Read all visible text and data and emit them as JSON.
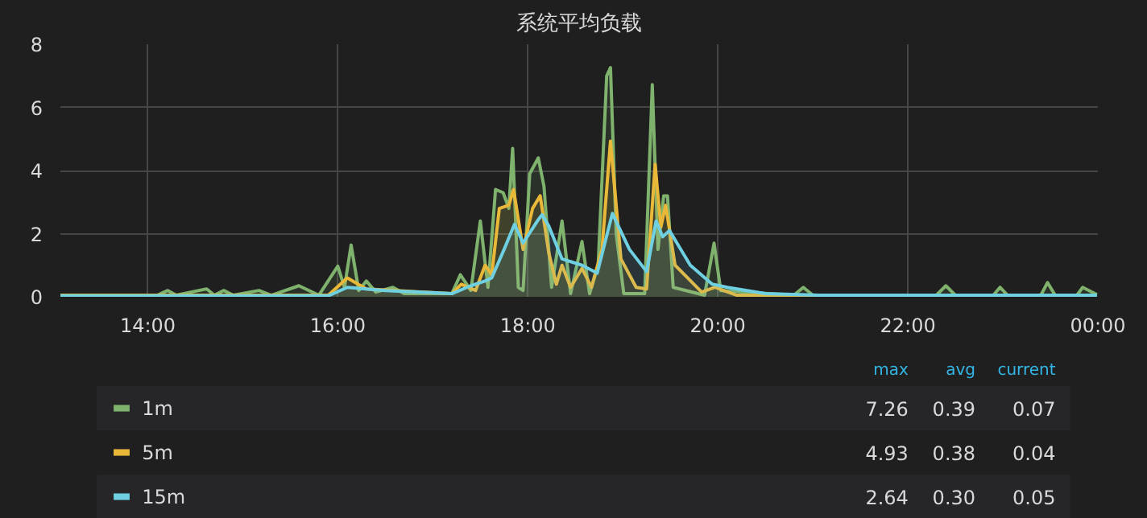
{
  "chart_data": {
    "type": "area",
    "title": "系统平均负载",
    "xlim": [
      13.08,
      24
    ],
    "ylim": [
      0,
      8
    ],
    "xticks": [
      {
        "value": 14,
        "label": "14:00"
      },
      {
        "value": 16,
        "label": "16:00"
      },
      {
        "value": 18,
        "label": "18:00"
      },
      {
        "value": 20,
        "label": "20:00"
      },
      {
        "value": 22,
        "label": "22:00"
      },
      {
        "value": 24,
        "label": "00:00"
      }
    ],
    "yticks": [
      0,
      2,
      4,
      6,
      8
    ],
    "grid": true,
    "legend": "bottom",
    "annotations": [
      "max",
      "avg",
      "current",
      "7.26",
      "0.39",
      "0.07",
      "4.93",
      "0.38",
      "0.04",
      "2.64",
      "0.30",
      "0.05"
    ],
    "series": [
      {
        "name": "1m",
        "color": "#7eb26d",
        "x": [
          13.08,
          14.1,
          14.21,
          14.3,
          14.62,
          14.7,
          14.8,
          14.9,
          15.17,
          15.3,
          15.59,
          15.8,
          16.0,
          16.07,
          16.14,
          16.22,
          16.3,
          16.4,
          16.58,
          16.7,
          17.2,
          17.29,
          17.4,
          17.5,
          17.58,
          17.66,
          17.74,
          17.8,
          17.84,
          17.9,
          17.95,
          18.02,
          18.11,
          18.17,
          18.25,
          18.36,
          18.45,
          18.57,
          18.65,
          18.74,
          18.83,
          18.87,
          18.93,
          19.01,
          19.23,
          19.31,
          19.37,
          19.43,
          19.47,
          19.53,
          19.86,
          19.96,
          20.03,
          20.8,
          20.9,
          21.0,
          22.3,
          22.4,
          22.5,
          22.9,
          22.97,
          23.05,
          23.4,
          23.47,
          23.55,
          23.78,
          23.84,
          23.99
        ],
        "values": [
          0.05,
          0.05,
          0.2,
          0.05,
          0.25,
          0.05,
          0.2,
          0.05,
          0.2,
          0.05,
          0.35,
          0.05,
          0.97,
          0.3,
          1.64,
          0.2,
          0.5,
          0.15,
          0.3,
          0.1,
          0.1,
          0.7,
          0.2,
          2.4,
          0.3,
          3.4,
          3.3,
          2.8,
          4.7,
          0.3,
          0.2,
          3.9,
          4.4,
          3.5,
          0.3,
          2.4,
          0.1,
          1.75,
          0.1,
          1.0,
          7.0,
          7.26,
          2.0,
          0.1,
          0.1,
          6.72,
          1.5,
          3.2,
          3.2,
          0.3,
          0.05,
          1.7,
          0.2,
          0.05,
          0.3,
          0.05,
          0.05,
          0.35,
          0.05,
          0.05,
          0.3,
          0.05,
          0.05,
          0.45,
          0.05,
          0.05,
          0.3,
          0.07
        ]
      },
      {
        "name": "5m",
        "color": "#eab839",
        "x": [
          13.08,
          15.9,
          16.1,
          16.3,
          17.2,
          17.3,
          17.45,
          17.55,
          17.62,
          17.7,
          17.8,
          17.85,
          17.95,
          18.05,
          18.13,
          18.22,
          18.3,
          18.36,
          18.45,
          18.57,
          18.67,
          18.78,
          18.87,
          18.98,
          19.14,
          19.25,
          19.34,
          19.4,
          19.45,
          19.55,
          19.83,
          19.97,
          20.2,
          23.99
        ],
        "values": [
          0.05,
          0.05,
          0.6,
          0.25,
          0.1,
          0.4,
          0.2,
          1.0,
          0.7,
          2.8,
          2.9,
          3.4,
          1.5,
          2.8,
          3.2,
          1.4,
          0.4,
          1.0,
          0.3,
          0.9,
          0.3,
          1.5,
          4.93,
          1.2,
          0.3,
          0.25,
          4.2,
          2.2,
          2.9,
          1.0,
          0.15,
          0.3,
          0.05,
          0.04
        ]
      },
      {
        "name": "15m",
        "color": "#6ed0e0",
        "x": [
          13.08,
          15.9,
          16.1,
          16.5,
          17.2,
          17.4,
          17.55,
          17.62,
          17.75,
          17.86,
          17.95,
          18.1,
          18.15,
          18.22,
          18.36,
          18.57,
          18.73,
          18.89,
          19.07,
          19.25,
          19.35,
          19.42,
          19.49,
          19.71,
          19.94,
          20.1,
          20.5,
          21.07,
          23.99
        ],
        "values": [
          0.03,
          0.03,
          0.3,
          0.2,
          0.1,
          0.35,
          0.5,
          0.6,
          1.5,
          2.3,
          1.7,
          2.4,
          2.6,
          2.25,
          1.2,
          1.0,
          0.75,
          2.64,
          1.5,
          0.8,
          2.4,
          1.9,
          2.1,
          1.0,
          0.4,
          0.3,
          0.1,
          0.05,
          0.05
        ]
      }
    ]
  }
}
